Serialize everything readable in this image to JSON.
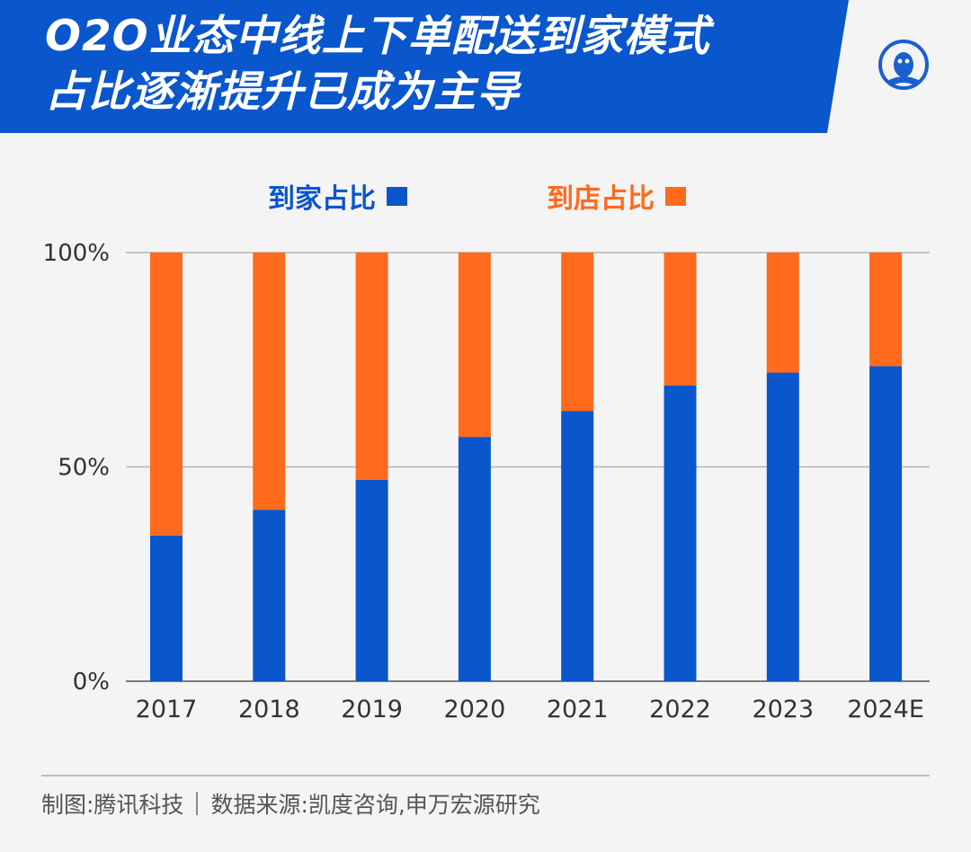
{
  "header": {
    "title_line1": "O2O业态中线上下单配送到家模式",
    "title_line2": "占比逐渐提升已成为主导",
    "band_color": "#0a56cc",
    "logo_icon": "tencent-news-penguin-icon"
  },
  "legend": {
    "items": [
      {
        "label": "到家占比",
        "color": "#0a56cc"
      },
      {
        "label": "到店占比",
        "color": "#ff6a1c"
      }
    ]
  },
  "chart_data": {
    "type": "bar",
    "stacked": true,
    "categories": [
      "2017",
      "2018",
      "2019",
      "2020",
      "2021",
      "2022",
      "2023",
      "2024E"
    ],
    "series": [
      {
        "name": "到家占比",
        "color": "#0a56cc",
        "values": [
          34,
          40,
          47,
          57,
          63,
          69,
          72,
          73.5
        ]
      },
      {
        "name": "到店占比",
        "color": "#ff6a1c",
        "values": [
          66,
          60,
          53,
          43,
          37,
          31,
          28,
          26.5
        ]
      }
    ],
    "yticks": [
      "0%",
      "50%",
      "100%"
    ],
    "ylim": [
      0,
      100
    ],
    "grid": true,
    "title": "",
    "xlabel": "",
    "ylabel": ""
  },
  "footer": {
    "maker": "制图:腾讯科技",
    "source": "数据来源:凯度咨询,申万宏源研究"
  }
}
